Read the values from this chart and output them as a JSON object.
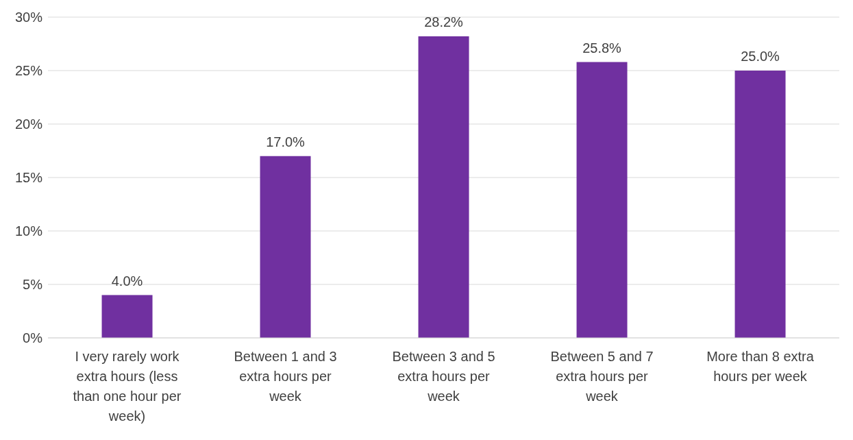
{
  "chart_data": {
    "type": "bar",
    "categories": [
      "I very rarely work extra hours (less than one hour per week)",
      "Between 1 and 3 extra hours per week",
      "Between 3 and 5 extra hours per week",
      "Between 5 and 7 extra hours per week",
      "More than 8 extra hours per week"
    ],
    "values": [
      4.0,
      17.0,
      28.2,
      25.8,
      25.0
    ],
    "value_labels": [
      "4.0%",
      "17.0%",
      "28.2%",
      "25.8%",
      "25.0%"
    ],
    "color": "#7030a0",
    "ylim": [
      0,
      30
    ],
    "yticks": [
      {
        "value": 0,
        "label": "0%"
      },
      {
        "value": 5,
        "label": "5%"
      },
      {
        "value": 10,
        "label": "10%"
      },
      {
        "value": 15,
        "label": "15%"
      },
      {
        "value": 20,
        "label": "20%"
      },
      {
        "value": 25,
        "label": "25%"
      },
      {
        "value": 30,
        "label": "30%"
      }
    ],
    "grid": "y"
  }
}
